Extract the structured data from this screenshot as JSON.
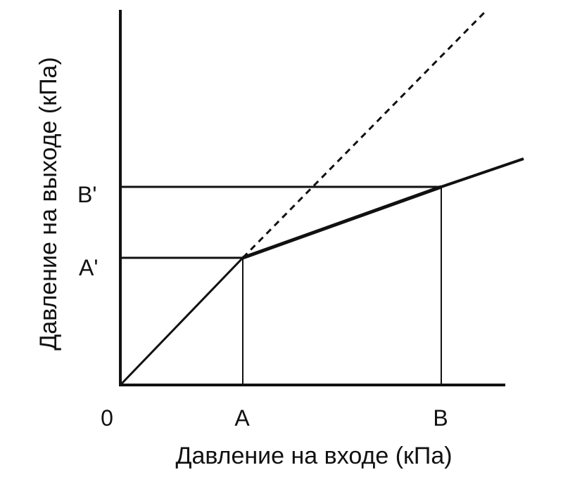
{
  "chart_data": {
    "type": "line",
    "title": "",
    "xlabel": "Давление на входе (кПа)",
    "ylabel": "Давление на выходе (кПа)",
    "x_ticks": [
      "0",
      "A",
      "B"
    ],
    "y_ticks": [
      "A'",
      "B'"
    ],
    "grid": false,
    "legend": "none",
    "notes": "Schematic chart without numeric scale; the characteristic follows y = x up to point A, then rises with a lower slope through point B; the dashed line continues y = x.",
    "series": [
      {
        "style": "solid",
        "points": [
          [
            "0",
            "0"
          ],
          [
            "A",
            "A'"
          ],
          [
            "B",
            "B'"
          ]
        ]
      },
      {
        "style": "dashed",
        "points": [
          [
            "A",
            "A'"
          ]
        ]
      }
    ],
    "guides": [
      {
        "from": [
          "A",
          "0"
        ],
        "to": [
          "A",
          "A'"
        ]
      },
      {
        "from": [
          "0",
          "A'"
        ],
        "to": [
          "A",
          "A'"
        ]
      },
      {
        "from": [
          "B",
          "0"
        ],
        "to": [
          "B",
          "B'"
        ]
      },
      {
        "from": [
          "0",
          "B'"
        ],
        "to": [
          "B",
          "B'"
        ]
      }
    ],
    "colors": {
      "line": "#111111",
      "background": "#ffffff"
    }
  }
}
